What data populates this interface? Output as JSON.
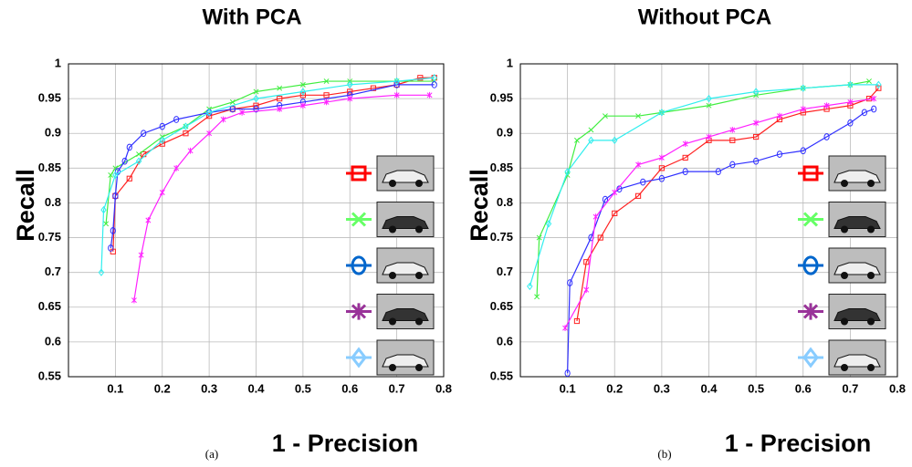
{
  "chart_data": [
    {
      "type": "line",
      "title": "With PCA",
      "xlabel": "1 - Precision",
      "ylabel": "Recall",
      "caption": "(a)",
      "xlim": [
        0,
        0.8
      ],
      "ylim": [
        0.55,
        1
      ],
      "xticks": [
        0.1,
        0.2,
        0.3,
        0.4,
        0.5,
        0.6,
        0.7,
        0.8
      ],
      "yticks": [
        0.55,
        0.6,
        0.65,
        0.7,
        0.75,
        0.8,
        0.85,
        0.9,
        0.95,
        1
      ],
      "grid": true,
      "series": [
        {
          "color": "#ff2020",
          "legend_color": "#ff0000",
          "marker": "square",
          "x": [
            0.095,
            0.1,
            0.13,
            0.16,
            0.2,
            0.25,
            0.3,
            0.35,
            0.4,
            0.45,
            0.5,
            0.55,
            0.6,
            0.65,
            0.7,
            0.75,
            0.78
          ],
          "values": [
            0.73,
            0.81,
            0.835,
            0.87,
            0.885,
            0.9,
            0.925,
            0.935,
            0.94,
            0.95,
            0.955,
            0.955,
            0.96,
            0.965,
            0.97,
            0.98,
            0.98
          ]
        },
        {
          "color": "#40ee40",
          "legend_color": "#66ff66",
          "marker": "x",
          "x": [
            0.08,
            0.09,
            0.1,
            0.15,
            0.2,
            0.25,
            0.3,
            0.35,
            0.4,
            0.45,
            0.5,
            0.55,
            0.6,
            0.7,
            0.78
          ],
          "values": [
            0.77,
            0.84,
            0.85,
            0.87,
            0.895,
            0.91,
            0.935,
            0.945,
            0.96,
            0.965,
            0.97,
            0.975,
            0.975,
            0.975,
            0.975
          ]
        },
        {
          "color": "#3030ff",
          "legend_color": "#0066cc",
          "marker": "circle",
          "x": [
            0.09,
            0.095,
            0.1,
            0.105,
            0.12,
            0.13,
            0.16,
            0.2,
            0.23,
            0.3,
            0.35,
            0.4,
            0.45,
            0.5,
            0.6,
            0.7,
            0.78
          ],
          "values": [
            0.735,
            0.76,
            0.81,
            0.845,
            0.86,
            0.88,
            0.9,
            0.91,
            0.92,
            0.93,
            0.935,
            0.935,
            0.94,
            0.945,
            0.955,
            0.97,
            0.97
          ]
        },
        {
          "color": "#ff20ff",
          "legend_color": "#993399",
          "marker": "asterisk",
          "x": [
            0.14,
            0.155,
            0.17,
            0.2,
            0.23,
            0.26,
            0.3,
            0.33,
            0.37,
            0.45,
            0.5,
            0.55,
            0.6,
            0.7,
            0.77
          ],
          "values": [
            0.66,
            0.725,
            0.775,
            0.815,
            0.85,
            0.875,
            0.9,
            0.92,
            0.93,
            0.935,
            0.94,
            0.945,
            0.95,
            0.955,
            0.955
          ]
        },
        {
          "color": "#30eeee",
          "legend_color": "#88ccff",
          "marker": "diamond",
          "x": [
            0.07,
            0.075,
            0.1,
            0.15,
            0.2,
            0.25,
            0.3,
            0.4,
            0.5,
            0.6,
            0.7,
            0.78
          ],
          "values": [
            0.7,
            0.79,
            0.84,
            0.86,
            0.89,
            0.91,
            0.93,
            0.95,
            0.96,
            0.97,
            0.975,
            0.98
          ]
        }
      ]
    },
    {
      "type": "line",
      "title": "Without PCA",
      "xlabel": "1 - Precision",
      "ylabel": "Recall",
      "caption": "(b)",
      "xlim": [
        0,
        0.8
      ],
      "ylim": [
        0.55,
        1
      ],
      "xticks": [
        0.1,
        0.2,
        0.3,
        0.4,
        0.5,
        0.6,
        0.7,
        0.8
      ],
      "yticks": [
        0.55,
        0.6,
        0.65,
        0.7,
        0.75,
        0.8,
        0.85,
        0.9,
        0.95,
        1
      ],
      "grid": true,
      "series": [
        {
          "color": "#ff2020",
          "legend_color": "#ff0000",
          "marker": "square",
          "x": [
            0.12,
            0.14,
            0.17,
            0.2,
            0.25,
            0.3,
            0.35,
            0.4,
            0.45,
            0.5,
            0.55,
            0.6,
            0.65,
            0.7,
            0.74,
            0.76
          ],
          "values": [
            0.63,
            0.715,
            0.75,
            0.785,
            0.81,
            0.85,
            0.865,
            0.89,
            0.89,
            0.895,
            0.92,
            0.93,
            0.935,
            0.94,
            0.95,
            0.965
          ]
        },
        {
          "color": "#40ee40",
          "legend_color": "#66ff66",
          "marker": "x",
          "x": [
            0.035,
            0.04,
            0.1,
            0.12,
            0.15,
            0.18,
            0.25,
            0.3,
            0.4,
            0.5,
            0.6,
            0.7,
            0.74
          ],
          "values": [
            0.665,
            0.75,
            0.84,
            0.89,
            0.905,
            0.925,
            0.925,
            0.93,
            0.94,
            0.955,
            0.965,
            0.97,
            0.975
          ]
        },
        {
          "color": "#3030ff",
          "legend_color": "#0066cc",
          "marker": "circle",
          "x": [
            0.1,
            0.105,
            0.15,
            0.18,
            0.21,
            0.26,
            0.3,
            0.35,
            0.42,
            0.45,
            0.5,
            0.55,
            0.6,
            0.65,
            0.7,
            0.73,
            0.75
          ],
          "values": [
            0.555,
            0.685,
            0.75,
            0.805,
            0.82,
            0.83,
            0.835,
            0.845,
            0.845,
            0.855,
            0.86,
            0.87,
            0.875,
            0.895,
            0.915,
            0.93,
            0.935
          ]
        },
        {
          "color": "#ff20ff",
          "legend_color": "#993399",
          "marker": "asterisk",
          "x": [
            0.095,
            0.14,
            0.16,
            0.2,
            0.25,
            0.3,
            0.35,
            0.4,
            0.45,
            0.5,
            0.55,
            0.6,
            0.65,
            0.7,
            0.75
          ],
          "values": [
            0.62,
            0.675,
            0.78,
            0.815,
            0.855,
            0.865,
            0.885,
            0.895,
            0.905,
            0.915,
            0.925,
            0.935,
            0.94,
            0.945,
            0.95
          ]
        },
        {
          "color": "#30eeee",
          "legend_color": "#88ccff",
          "marker": "diamond",
          "x": [
            0.02,
            0.06,
            0.1,
            0.15,
            0.2,
            0.3,
            0.4,
            0.5,
            0.6,
            0.7,
            0.76
          ],
          "values": [
            0.68,
            0.77,
            0.845,
            0.89,
            0.89,
            0.93,
            0.95,
            0.96,
            0.965,
            0.97,
            0.97
          ]
        }
      ]
    }
  ]
}
